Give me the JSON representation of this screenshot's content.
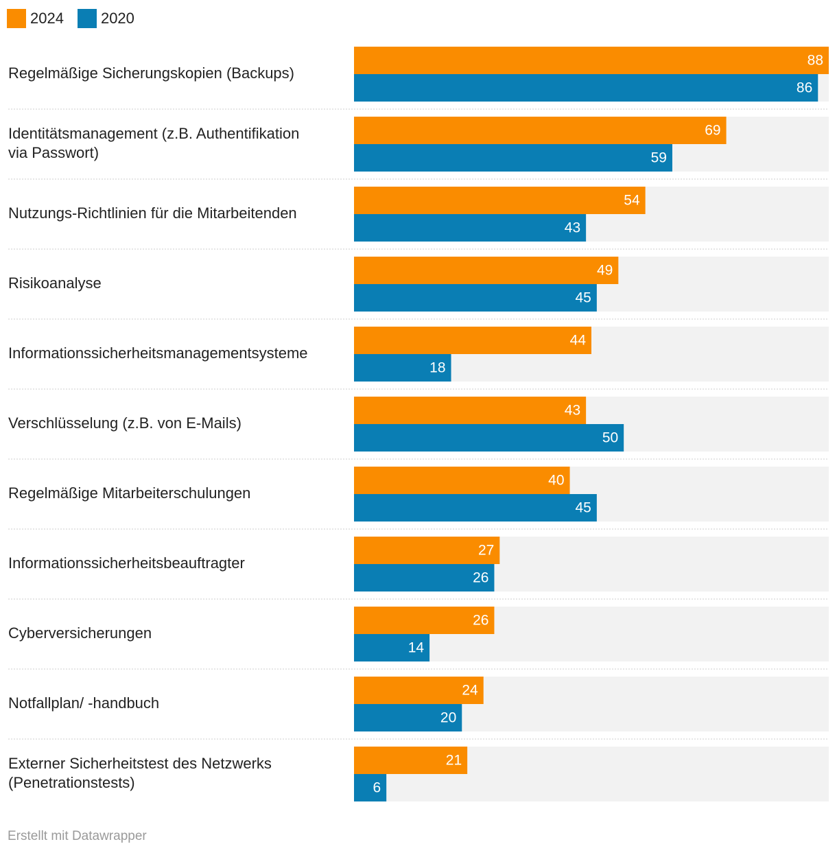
{
  "chart_data": {
    "type": "bar",
    "orientation": "horizontal",
    "grouped": true,
    "xlim": [
      0,
      88
    ],
    "series": [
      {
        "name": "2024",
        "color": "#fa8c00",
        "values": [
          88,
          69,
          54,
          49,
          44,
          43,
          40,
          27,
          26,
          24,
          21
        ]
      },
      {
        "name": "2020",
        "color": "#0a7eb4",
        "values": [
          86,
          59,
          43,
          45,
          18,
          50,
          45,
          26,
          14,
          20,
          6
        ]
      }
    ],
    "categories": [
      [
        "Regelmäßige Sicherungskopien (Backups)"
      ],
      [
        "Identitätsmanagement (z.B. Authentifikation",
        "via Passwort)"
      ],
      [
        "Nutzungs-Richtlinien für die Mitarbeitenden"
      ],
      [
        "Risikoanalyse"
      ],
      [
        "Informationssicherheitsmanagementsysteme"
      ],
      [
        "Verschlüsselung (z.B. von E-Mails)"
      ],
      [
        "Regelmäßige Mitarbeiterschulungen"
      ],
      [
        "Informationssicherheitsbeauftragter"
      ],
      [
        "Cyberversicherungen"
      ],
      [
        "Notfallplan/ -handbuch"
      ],
      [
        "Externer Sicherheitstest des Netzwerks",
        "(Penetrationstests)"
      ]
    ],
    "background_color": "#f2f2f2",
    "legend_position": "top-left"
  },
  "footer": "Erstellt mit Datawrapper"
}
